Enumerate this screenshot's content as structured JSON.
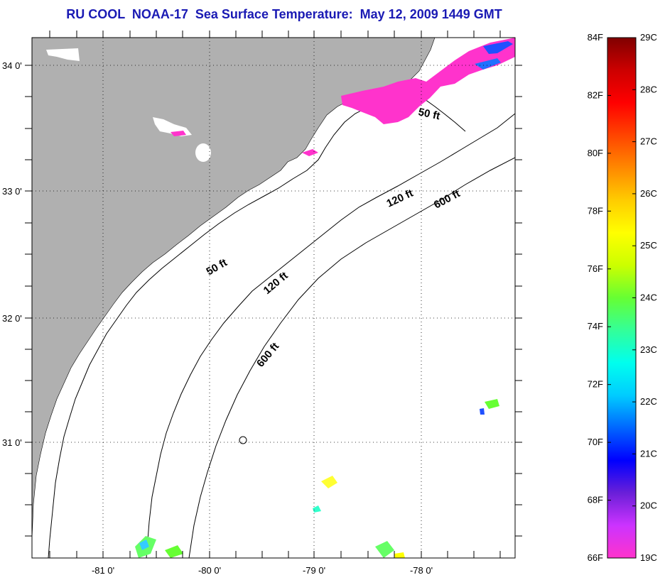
{
  "title": "RU COOL  NOAA-17  Sea Surface Temperature:  May 12, 2009 1449 GMT",
  "map": {
    "lat_labels": [
      "34 0'",
      "33 0'",
      "32 0'",
      "31 0'"
    ],
    "lon_labels": [
      "-81 0'",
      "-80 0'",
      "-79 0'",
      "-78 0'"
    ],
    "contour_labels": [
      "50 ft",
      "50 ft",
      "120 ft",
      "120 ft",
      "600 ft",
      "600 ft"
    ],
    "colors": {
      "land": "#b0b0b0",
      "ocean": "#ffffff",
      "grid": "#000000"
    }
  },
  "colorbar": {
    "fahrenheit_labels": [
      "84F",
      "82F",
      "80F",
      "78F",
      "76F",
      "74F",
      "72F",
      "70F",
      "68F",
      "66F"
    ],
    "celsius_labels": [
      "29C",
      "28C",
      "27C",
      "26C",
      "25C",
      "24C",
      "23C",
      "22C",
      "21C",
      "20C",
      "19C"
    ],
    "colors": [
      "#ff33cc",
      "#cc33ff",
      "#6a1fd8",
      "#0000ff",
      "#0066ff",
      "#00ccff",
      "#00ffee",
      "#33ff99",
      "#66ff33",
      "#ccff00",
      "#ffff00",
      "#ffcc00",
      "#ff8800",
      "#ff4400",
      "#ff0000",
      "#cc0000",
      "#800000"
    ]
  }
}
